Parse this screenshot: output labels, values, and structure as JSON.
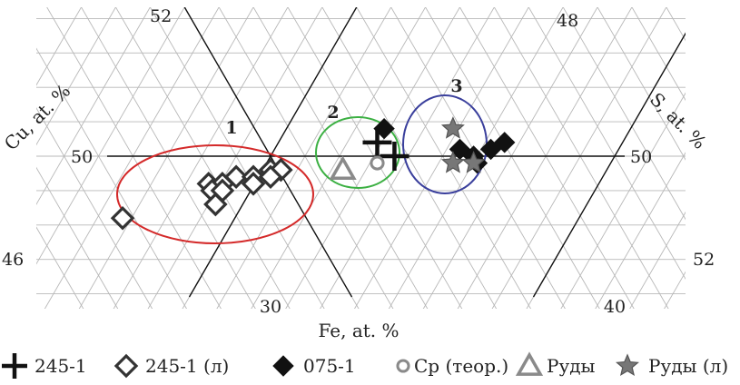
{
  "chart_data": {
    "type": "scatter",
    "subtype": "ternary-zoom",
    "grid": true,
    "axes": {
      "fe": {
        "label": "Fe, at. %",
        "ticks": [
          "30",
          "40"
        ]
      },
      "cu": {
        "label": "Cu, at. %",
        "ticks": [
          "52",
          "50",
          "46"
        ]
      },
      "s": {
        "label": "S, at. %",
        "ticks": [
          "48",
          "50",
          "52"
        ]
      }
    },
    "groups": [
      {
        "label": "1",
        "color": "#d42a2a"
      },
      {
        "label": "2",
        "color": "#3cb043"
      },
      {
        "label": "3",
        "color": "#3a3f9c"
      }
    ],
    "series": [
      {
        "name": "245-1",
        "marker": "plus",
        "color": "#111111",
        "points": [
          {
            "fe": 32.9,
            "cu": 50.2
          },
          {
            "fe": 33.6,
            "cu": 50.0
          }
        ]
      },
      {
        "name": "245-1 (л)",
        "marker": "diamond-open",
        "color": "#333333",
        "points": [
          {
            "fe": 26.6,
            "cu": 49.1
          },
          {
            "fe": 28.6,
            "cu": 49.6
          },
          {
            "fe": 29.0,
            "cu": 49.6
          },
          {
            "fe": 28.8,
            "cu": 49.5
          },
          {
            "fe": 29.1,
            "cu": 49.5
          },
          {
            "fe": 29.3,
            "cu": 49.7
          },
          {
            "fe": 29.8,
            "cu": 49.7
          },
          {
            "fe": 30.2,
            "cu": 49.8
          },
          {
            "fe": 30.5,
            "cu": 49.8
          },
          {
            "fe": 30.3,
            "cu": 49.7
          },
          {
            "fe": 29.1,
            "cu": 49.3
          },
          {
            "fe": 29.9,
            "cu": 49.6
          }
        ]
      },
      {
        "name": "075-1",
        "marker": "diamond-filled",
        "color": "#111111",
        "points": [
          {
            "fe": 32.9,
            "cu": 50.4
          },
          {
            "fe": 35.4,
            "cu": 50.1
          },
          {
            "fe": 35.9,
            "cu": 50.0
          },
          {
            "fe": 36.3,
            "cu": 50.1
          },
          {
            "fe": 36.6,
            "cu": 50.2
          },
          {
            "fe": 36.1,
            "cu": 49.9
          }
        ]
      },
      {
        "name": "Cp (теор.)",
        "marker": "circle",
        "color": "#8a8a8a",
        "points": [
          {
            "fe": 33.2,
            "cu": 49.9
          }
        ]
      },
      {
        "name": "Руды",
        "marker": "triangle-open",
        "color": "#8a8a8a",
        "points": [
          {
            "fe": 32.3,
            "cu": 49.8
          }
        ]
      },
      {
        "name": "Руды (л)",
        "marker": "star",
        "color": "#777777",
        "points": [
          {
            "fe": 34.9,
            "cu": 50.4
          },
          {
            "fe": 35.4,
            "cu": 49.9
          },
          {
            "fe": 36.0,
            "cu": 49.9
          }
        ]
      }
    ],
    "legend": [
      {
        "label": "245-1",
        "marker": "plus"
      },
      {
        "label": "245-1 (л)",
        "marker": "diamond-open"
      },
      {
        "label": "075-1",
        "marker": "diamond-filled"
      },
      {
        "label": "Cp (теор.)",
        "marker": "circle"
      },
      {
        "label": "Руды",
        "marker": "triangle-open"
      },
      {
        "label": "Руды (л)",
        "marker": "star"
      }
    ]
  }
}
